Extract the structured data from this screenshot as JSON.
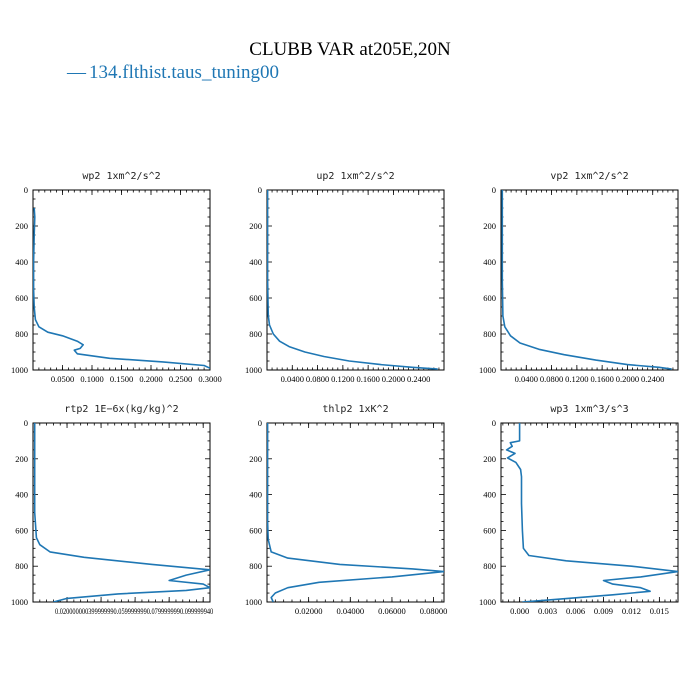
{
  "figure": {
    "title": "CLUBB VAR at205E,20N",
    "legend_label": "134.flthist.taus_tuning00",
    "legend_marker": "—",
    "line_color": "#1f77b4"
  },
  "chart_data": [
    {
      "type": "line",
      "title": "wp2   1xm^2/s^2",
      "xlim": [
        0.0,
        0.3
      ],
      "ylim": [
        1000,
        0
      ],
      "xticks": [
        "0.0500",
        "0.1000",
        "0.1500",
        "0.2000",
        "0.2500",
        "0.3000"
      ],
      "xtick_values": [
        0.05,
        0.1,
        0.15,
        0.2,
        0.25,
        0.3
      ],
      "yticks": [
        "0",
        "200",
        "400",
        "600",
        "800",
        "1000"
      ],
      "ytick_values": [
        0,
        200,
        400,
        600,
        800,
        1000
      ],
      "series": [
        {
          "x": [
            0.002,
            0.003,
            0.002,
            0.001,
            0.001,
            0.002,
            0.004,
            0.01,
            0.025,
            0.05,
            0.075,
            0.085,
            0.08,
            0.07,
            0.075,
            0.13,
            0.22,
            0.29,
            0.3
          ],
          "y": [
            100,
            150,
            250,
            400,
            550,
            650,
            720,
            760,
            790,
            810,
            840,
            860,
            880,
            890,
            910,
            935,
            955,
            975,
            990
          ]
        }
      ]
    },
    {
      "type": "line",
      "title": "up2   1xm^2/s^2",
      "xlim": [
        0.0,
        0.28
      ],
      "ylim": [
        1000,
        0
      ],
      "xticks": [
        "0.0400",
        "0.0800",
        "0.1200",
        "0.1600",
        "0.2000",
        "0.2400"
      ],
      "xtick_values": [
        0.04,
        0.08,
        0.12,
        0.16,
        0.2,
        0.24
      ],
      "yticks": [
        "0",
        "200",
        "400",
        "600",
        "800",
        "1000"
      ],
      "ytick_values": [
        0,
        200,
        400,
        600,
        800,
        1000
      ],
      "series": [
        {
          "x": [
            0.001,
            0.001,
            0.001,
            0.002,
            0.004,
            0.01,
            0.02,
            0.035,
            0.06,
            0.09,
            0.13,
            0.18,
            0.23,
            0.27
          ],
          "y": [
            0,
            200,
            500,
            700,
            750,
            800,
            840,
            870,
            900,
            925,
            950,
            970,
            985,
            995
          ]
        }
      ]
    },
    {
      "type": "line",
      "title": "vp2   1xm^2/s^2",
      "xlim": [
        0.0,
        0.28
      ],
      "ylim": [
        1000,
        0
      ],
      "xticks": [
        "0.0400",
        "0.0800",
        "0.1200",
        "0.1600",
        "0.2000",
        "0.2400"
      ],
      "xtick_values": [
        0.04,
        0.08,
        0.12,
        0.16,
        0.2,
        0.24
      ],
      "yticks": [
        "0",
        "200",
        "400",
        "600",
        "800",
        "1000"
      ],
      "ytick_values": [
        0,
        200,
        400,
        600,
        800,
        1000
      ],
      "series": [
        {
          "x": [
            0.002,
            0.002,
            0.002,
            0.003,
            0.006,
            0.015,
            0.03,
            0.06,
            0.1,
            0.15,
            0.2,
            0.25,
            0.27
          ],
          "y": [
            0,
            200,
            500,
            700,
            760,
            810,
            850,
            885,
            915,
            945,
            970,
            985,
            995
          ]
        }
      ]
    },
    {
      "type": "line",
      "title": "rtp2   1E−6x(kg/kg)^2",
      "xlim": [
        0.0,
        0.104
      ],
      "ylim": [
        1000,
        0
      ],
      "xticks": [
        "0.0200000",
        "0.039999",
        "0.059999",
        "0.079999",
        "0.099999"
      ],
      "tick_label_text": "0.020000000399999990.0599999990.0799999990.099999940",
      "xtick_values": [
        0.02,
        0.04,
        0.06,
        0.08,
        0.1
      ],
      "yticks": [
        "0",
        "200",
        "400",
        "600",
        "800",
        "1000"
      ],
      "ytick_values": [
        0,
        200,
        400,
        600,
        800,
        1000
      ],
      "series": [
        {
          "x": [
            0.001,
            0.001,
            0.002,
            0.004,
            0.01,
            0.03,
            0.07,
            0.104,
            0.09,
            0.08,
            0.1,
            0.104,
            0.09,
            0.05,
            0.02,
            0.012
          ],
          "y": [
            0,
            500,
            640,
            680,
            720,
            750,
            790,
            820,
            850,
            880,
            900,
            920,
            935,
            955,
            980,
            1000
          ]
        }
      ]
    },
    {
      "type": "line",
      "title": "thlp2   1xK^2",
      "xlim": [
        0.0,
        0.085
      ],
      "ylim": [
        1000,
        0
      ],
      "xticks": [
        "0.02000",
        "0.04000",
        "0.06000",
        "0.08000"
      ],
      "xtick_values": [
        0.02,
        0.04,
        0.06,
        0.08
      ],
      "yticks": [
        "0",
        "200",
        "400",
        "600",
        "800",
        "1000"
      ],
      "ytick_values": [
        0,
        200,
        400,
        600,
        800,
        1000
      ],
      "series": [
        {
          "x": [
            0.0003,
            0.0003,
            0.0006,
            0.002,
            0.01,
            0.035,
            0.07,
            0.085,
            0.06,
            0.025,
            0.01,
            0.004,
            0.002,
            0.003
          ],
          "y": [
            0,
            550,
            650,
            720,
            755,
            790,
            815,
            830,
            860,
            890,
            920,
            950,
            975,
            1000
          ]
        }
      ]
    },
    {
      "type": "line",
      "title": "wp3   1xm^3/s^3",
      "xlim": [
        -0.002,
        0.017
      ],
      "ylim": [
        1000,
        0
      ],
      "xticks": [
        "0.000",
        "0.003",
        "0.006",
        "0.009",
        "0.012",
        "0.015"
      ],
      "xtick_values": [
        0.0,
        0.003,
        0.006,
        0.009,
        0.012,
        0.015
      ],
      "yticks": [
        "0",
        "200",
        "400",
        "600",
        "800",
        "1000"
      ],
      "ytick_values": [
        0,
        200,
        400,
        600,
        800,
        1000
      ],
      "series": [
        {
          "x": [
            0.0,
            0.0,
            -0.001,
            -0.0008,
            -0.0014,
            -0.0005,
            -0.0013,
            -0.0004,
            0.0001,
            0.0002,
            0.0002,
            0.0003,
            0.0004,
            0.001,
            0.005,
            0.012,
            0.017,
            0.013,
            0.009,
            0.01,
            0.013,
            0.014,
            0.01,
            0.004,
            0.0003
          ],
          "y": [
            0,
            100,
            110,
            130,
            150,
            170,
            195,
            220,
            260,
            300,
            450,
            600,
            700,
            740,
            770,
            800,
            830,
            860,
            880,
            900,
            920,
            940,
            960,
            985,
            1000
          ]
        }
      ]
    }
  ]
}
